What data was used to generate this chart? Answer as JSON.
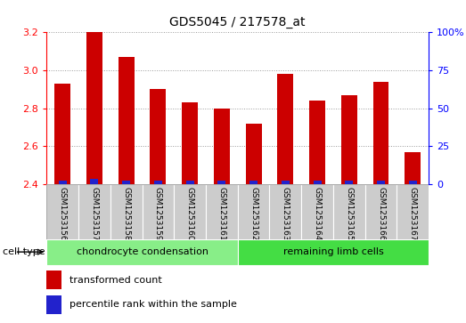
{
  "title": "GDS5045 / 217578_at",
  "samples": [
    "GSM1253156",
    "GSM1253157",
    "GSM1253158",
    "GSM1253159",
    "GSM1253160",
    "GSM1253161",
    "GSM1253162",
    "GSM1253163",
    "GSM1253164",
    "GSM1253165",
    "GSM1253166",
    "GSM1253167"
  ],
  "transformed_count": [
    2.93,
    3.2,
    3.07,
    2.9,
    2.83,
    2.8,
    2.72,
    2.98,
    2.84,
    2.87,
    2.94,
    2.57
  ],
  "percentile_rank": [
    2.0,
    3.5,
    2.5,
    2.0,
    2.0,
    2.5,
    2.0,
    2.0,
    2.0,
    2.0,
    2.0,
    2.0
  ],
  "ylim_left": [
    2.4,
    3.2
  ],
  "ylim_right": [
    0,
    100
  ],
  "yticks_left": [
    2.4,
    2.6,
    2.8,
    3.0,
    3.2
  ],
  "yticks_right": [
    0,
    25,
    50,
    75,
    100
  ],
  "bar_color_red": "#cc0000",
  "bar_color_blue": "#2222cc",
  "grid_color": "#999999",
  "cell_type_groups": [
    {
      "label": "chondrocyte condensation",
      "start": 0,
      "end": 6,
      "color": "#88ee88"
    },
    {
      "label": "remaining limb cells",
      "start": 6,
      "end": 12,
      "color": "#44dd44"
    }
  ],
  "cell_type_label": "cell type",
  "legend_red": "transformed count",
  "legend_blue": "percentile rank within the sample",
  "bar_width": 0.5,
  "blue_bar_width": 0.25,
  "sample_bg_color": "#cccccc",
  "spine_color": "#aaaaaa",
  "fig_bg": "#ffffff"
}
